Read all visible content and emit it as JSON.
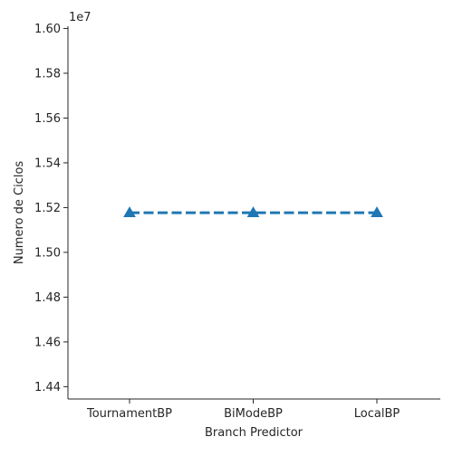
{
  "chart_data": {
    "type": "line",
    "xlabel": "Branch Predictor",
    "ylabel": "Numero de Ciclos",
    "categories": [
      "TournamentBP",
      "BiModeBP",
      "LocalBP"
    ],
    "series": [
      {
        "values": [
          15177000,
          15177000,
          15177000
        ]
      }
    ],
    "ylim": [
      14345000,
      16010000
    ],
    "yticks": [
      14400000,
      14600000,
      14800000,
      15000000,
      15200000,
      15400000,
      15600000,
      15800000,
      16000000
    ],
    "ytick_labels": [
      "1.44",
      "1.46",
      "1.48",
      "1.50",
      "1.52",
      "1.54",
      "1.56",
      "1.58",
      "1.60"
    ],
    "y_offset_label": "1e7",
    "line_style": "dashed",
    "marker": "triangle",
    "color": "#1f77b4",
    "grid": false,
    "legend": "none"
  }
}
